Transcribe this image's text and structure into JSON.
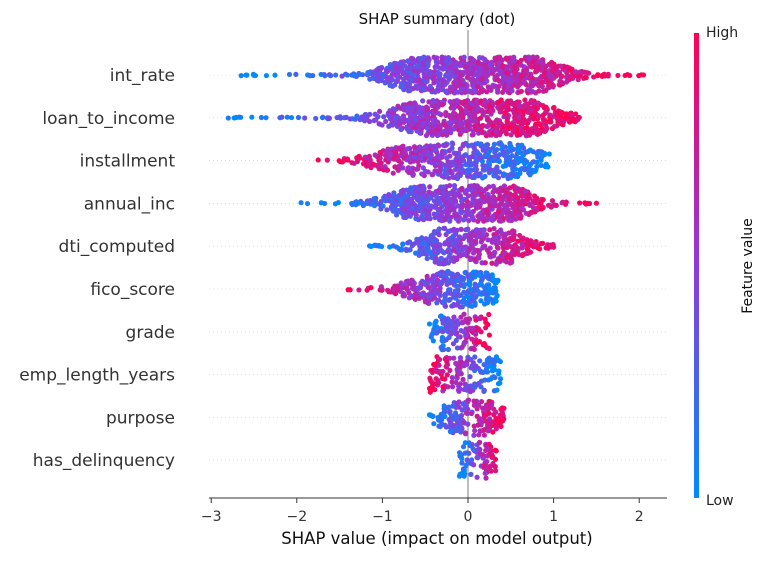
{
  "chart_data": {
    "type": "scatter",
    "title": "SHAP summary (dot)",
    "xlabel": "SHAP value (impact on model output)",
    "xlim": [
      -3.05,
      2.3
    ],
    "xticks": [
      {
        "value": -3,
        "label": "−3"
      },
      {
        "value": -2,
        "label": "−2"
      },
      {
        "value": -1,
        "label": "−1"
      },
      {
        "value": 0,
        "label": "0"
      },
      {
        "value": 1,
        "label": "1"
      },
      {
        "value": 2,
        "label": "2"
      }
    ],
    "colorbar": {
      "label": "Feature value",
      "high_label": "High",
      "low_label": "Low"
    },
    "colors": {
      "low": "#008bfb",
      "high": "#ff0052",
      "mid": "#8e3bdc",
      "zero_line": "#999999",
      "axis": "#333333",
      "grid": "#cccccc"
    },
    "features": [
      {
        "name": "int_rate",
        "min": -2.65,
        "max": 2.05,
        "spread": 0.32,
        "trend": 1,
        "clusters": [
          {
            "x": -0.6,
            "h": 0.85
          },
          {
            "x": 0.1,
            "h": 1.0
          },
          {
            "x": 0.75,
            "h": 0.9
          }
        ]
      },
      {
        "name": "loan_to_income",
        "min": -2.8,
        "max": 1.3,
        "spread": 0.38,
        "trend": 1,
        "clusters": [
          {
            "x": -0.5,
            "h": 0.85
          },
          {
            "x": 0.15,
            "h": 1.0
          },
          {
            "x": 0.6,
            "h": 0.8
          }
        ]
      },
      {
        "name": "installment",
        "min": -1.75,
        "max": 0.95,
        "spread": 0.33,
        "trend": -1,
        "clusters": [
          {
            "x": -0.75,
            "h": 0.7
          },
          {
            "x": 0.0,
            "h": 0.95
          },
          {
            "x": 0.5,
            "h": 0.85
          }
        ]
      },
      {
        "name": "annual_inc",
        "min": -1.95,
        "max": 1.5,
        "spread": 0.32,
        "trend": 1,
        "clusters": [
          {
            "x": -0.6,
            "h": 0.75
          },
          {
            "x": 0.0,
            "h": 0.95
          },
          {
            "x": 0.4,
            "h": 0.85
          }
        ]
      },
      {
        "name": "dti_computed",
        "min": -1.15,
        "max": 1.0,
        "spread": 0.28,
        "trend": 1,
        "clusters": [
          {
            "x": -0.3,
            "h": 0.65
          },
          {
            "x": 0.05,
            "h": 1.0
          },
          {
            "x": 0.35,
            "h": 0.7
          }
        ]
      },
      {
        "name": "fico_score",
        "min": -1.4,
        "max": 0.35,
        "spread": 0.3,
        "trend": -1,
        "clusters": [
          {
            "x": -0.45,
            "h": 0.55
          },
          {
            "x": 0.05,
            "h": 1.0
          }
        ]
      },
      {
        "name": "grade",
        "min": -0.45,
        "max": 0.25,
        "spread": 0.22,
        "trend": 1,
        "clusters": [
          {
            "x": -0.2,
            "h": 0.55
          },
          {
            "x": 0.0,
            "h": 1.0
          },
          {
            "x": 0.1,
            "h": 0.7
          }
        ]
      },
      {
        "name": "emp_length_years",
        "min": -0.45,
        "max": 0.38,
        "spread": 0.55,
        "trend": -1,
        "clusters": [
          {
            "x": -0.07,
            "h": 1.0
          },
          {
            "x": 0.15,
            "h": 0.7
          }
        ]
      },
      {
        "name": "purpose",
        "min": -0.45,
        "max": 0.42,
        "spread": 0.25,
        "trend": 1,
        "clusters": [
          {
            "x": -0.02,
            "h": 1.0
          },
          {
            "x": 0.2,
            "h": 0.4
          }
        ]
      },
      {
        "name": "has_delinquency",
        "min": -0.1,
        "max": 0.33,
        "spread": 0.22,
        "trend": 1,
        "clusters": [
          {
            "x": -0.02,
            "h": 1.0
          },
          {
            "x": 0.1,
            "h": 0.5
          }
        ]
      }
    ]
  }
}
